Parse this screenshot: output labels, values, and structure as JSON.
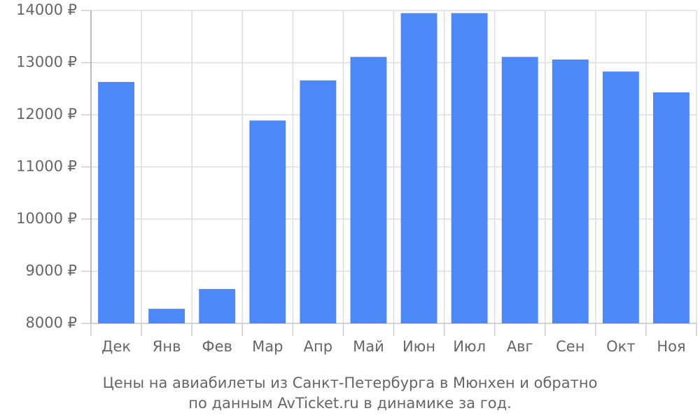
{
  "chart_data": {
    "type": "bar",
    "title": [
      "Цены на авиабилеты из Санкт-Петербурга в Мюнхен и обратно",
      "по данным AvTicket.ru в динамике за год."
    ],
    "categories": [
      "Дек",
      "Янв",
      "Фев",
      "Мар",
      "Апр",
      "Май",
      "Июн",
      "Июл",
      "Авг",
      "Сен",
      "Окт",
      "Ноя"
    ],
    "values": [
      12630,
      8280,
      8660,
      11890,
      12660,
      13110,
      13950,
      13950,
      13110,
      13060,
      12830,
      12430
    ],
    "color": "#4d88f9",
    "ylim": [
      8000,
      14000
    ],
    "yticks": [
      {
        "value": 8000,
        "label": "8000 ₽"
      },
      {
        "value": 9000,
        "label": "9000 ₽"
      },
      {
        "value": 10000,
        "label": "10000 ₽"
      },
      {
        "value": 11000,
        "label": "11000 ₽"
      },
      {
        "value": 12000,
        "label": "12000 ₽"
      },
      {
        "value": 13000,
        "label": "13000 ₽"
      },
      {
        "value": 14000,
        "label": "14000 ₽"
      }
    ],
    "grid": true
  }
}
